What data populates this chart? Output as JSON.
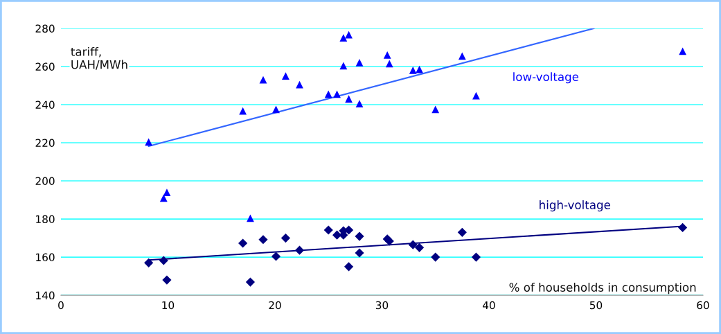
{
  "chart_data": {
    "type": "scatter",
    "xlabel": "% of households in consumption",
    "ylabel": "tariff,\nUAH/MWh",
    "xlim": [
      0,
      60
    ],
    "xticks": [
      0,
      10,
      20,
      30,
      40,
      50,
      60
    ],
    "ylim": [
      140,
      280
    ],
    "yticks": [
      140,
      160,
      180,
      200,
      220,
      240,
      260,
      280
    ],
    "grid": "y",
    "legend": false,
    "series": [
      {
        "name": "low-voltage",
        "color": "#0000ff",
        "marker": "triangle",
        "x": [
          8.2,
          9.6,
          9.9,
          17.0,
          17.7,
          18.9,
          20.1,
          21.0,
          22.3,
          25.0,
          25.8,
          26.4,
          26.9,
          26.4,
          26.9,
          27.9,
          27.9,
          30.5,
          30.7,
          32.9,
          33.5,
          35.0,
          37.5,
          38.8,
          58.1
        ],
        "values": [
          220.4,
          191,
          194,
          236.7,
          180.4,
          253,
          237.5,
          255,
          250.5,
          245.5,
          245.5,
          275,
          276.7,
          260.4,
          243,
          262,
          240.5,
          266,
          261.5,
          258,
          258.5,
          237.5,
          265.5,
          244.7,
          268
        ]
      },
      {
        "name": "high-voltage",
        "color": "#000080",
        "marker": "diamond",
        "x": [
          8.2,
          9.6,
          9.9,
          17.0,
          17.7,
          18.9,
          20.1,
          21.0,
          22.3,
          25.0,
          25.8,
          26.4,
          26.4,
          26.9,
          26.9,
          27.9,
          27.9,
          30.5,
          30.7,
          32.9,
          33.5,
          35.0,
          37.5,
          38.8,
          58.1
        ],
        "values": [
          157,
          158.2,
          148,
          167.3,
          146.9,
          169.2,
          160.4,
          170,
          163.6,
          174.2,
          171.6,
          173.8,
          171.6,
          155,
          174.2,
          170.9,
          162.2,
          169.5,
          168.4,
          166.5,
          165,
          160,
          173,
          160,
          175.5
        ]
      },
      {
        "type": "line",
        "color": "#3366ff",
        "marker": "none",
        "x": [
          8.2,
          49.8
        ],
        "values": [
          218.2,
          280
        ]
      },
      {
        "type": "line",
        "color": "#000080",
        "marker": "none",
        "x": [
          8.2,
          58.1
        ],
        "values": [
          158.5,
          176.2
        ]
      }
    ]
  }
}
